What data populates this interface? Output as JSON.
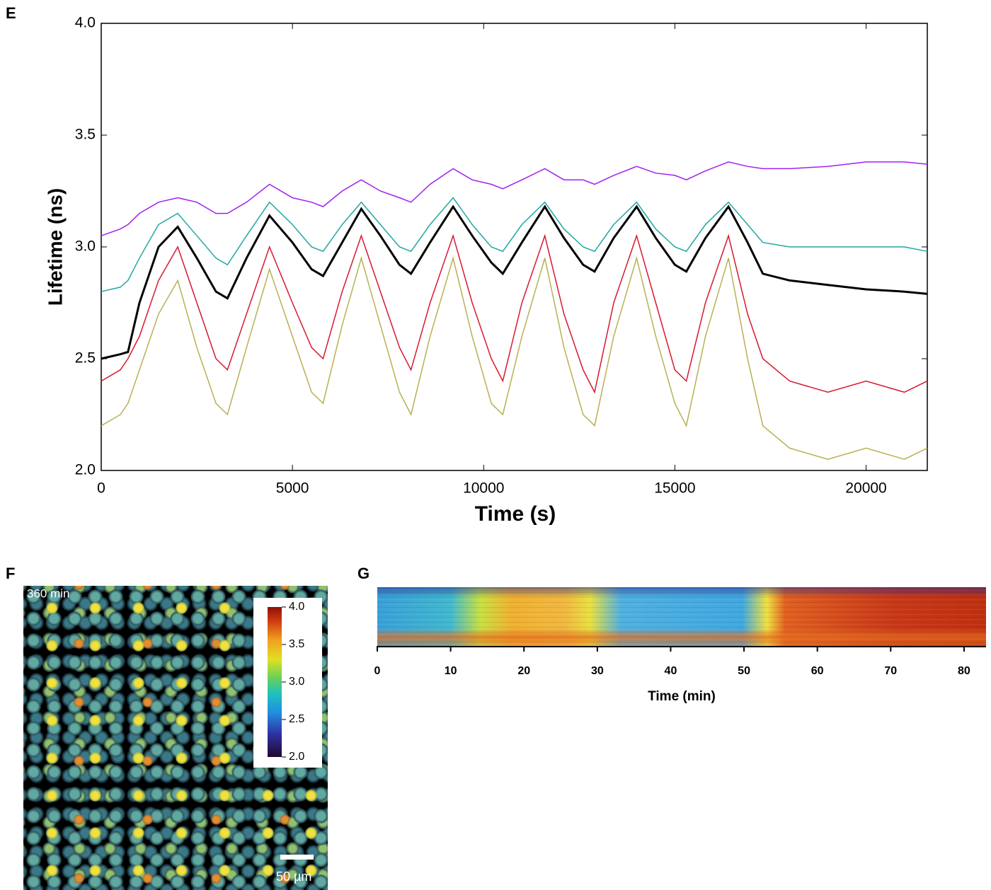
{
  "panel_labels": [
    "E",
    "F",
    "G"
  ],
  "chart_data": [
    {
      "type": "line",
      "xlabel": "Time (s)",
      "ylabel": "Lifetime (ns)",
      "xlim": [
        0,
        21600
      ],
      "ylim": [
        2.0,
        4.0
      ],
      "xticks": [
        0,
        5000,
        10000,
        15000,
        20000
      ],
      "yticks": [
        {
          "value": 2.0,
          "label": "2.0"
        },
        {
          "value": 2.5,
          "label": "2.5"
        },
        {
          "value": 3.0,
          "label": "3.0"
        },
        {
          "value": 3.5,
          "label": "3.5"
        },
        {
          "value": 4.0,
          "label": "4.0"
        }
      ],
      "x": [
        0,
        500,
        700,
        1000,
        1500,
        2000,
        2500,
        3000,
        3300,
        3800,
        4400,
        5000,
        5500,
        5800,
        6300,
        6800,
        7300,
        7800,
        8100,
        8600,
        9200,
        9700,
        10200,
        10500,
        11000,
        11600,
        12100,
        12600,
        12900,
        13400,
        14000,
        14500,
        15000,
        15300,
        15800,
        16400,
        16900,
        17300,
        18000,
        19000,
        20000,
        21000,
        21600
      ],
      "series": [
        {
          "color": "#a020f0",
          "values": [
            3.05,
            3.08,
            3.1,
            3.15,
            3.2,
            3.22,
            3.2,
            3.15,
            3.15,
            3.2,
            3.28,
            3.22,
            3.2,
            3.18,
            3.25,
            3.3,
            3.25,
            3.22,
            3.2,
            3.28,
            3.35,
            3.3,
            3.28,
            3.26,
            3.3,
            3.35,
            3.3,
            3.3,
            3.28,
            3.32,
            3.36,
            3.33,
            3.32,
            3.3,
            3.34,
            3.38,
            3.36,
            3.35,
            3.35,
            3.36,
            3.38,
            3.38,
            3.37
          ]
        },
        {
          "color": "#20a8a0",
          "values": [
            2.8,
            2.82,
            2.85,
            2.95,
            3.1,
            3.15,
            3.05,
            2.95,
            2.92,
            3.05,
            3.2,
            3.1,
            3.0,
            2.98,
            3.1,
            3.2,
            3.1,
            3.0,
            2.98,
            3.1,
            3.22,
            3.1,
            3.0,
            2.98,
            3.1,
            3.2,
            3.08,
            3.0,
            2.98,
            3.1,
            3.2,
            3.08,
            3.0,
            2.98,
            3.1,
            3.2,
            3.1,
            3.02,
            3.0,
            3.0,
            3.0,
            3.0,
            2.98
          ]
        },
        {
          "color": "#d81830",
          "values": [
            2.4,
            2.45,
            2.5,
            2.6,
            2.85,
            3.0,
            2.75,
            2.5,
            2.45,
            2.7,
            3.0,
            2.75,
            2.55,
            2.5,
            2.8,
            3.05,
            2.8,
            2.55,
            2.45,
            2.75,
            3.05,
            2.75,
            2.5,
            2.4,
            2.75,
            3.05,
            2.7,
            2.45,
            2.35,
            2.75,
            3.05,
            2.75,
            2.45,
            2.4,
            2.75,
            3.05,
            2.7,
            2.5,
            2.4,
            2.35,
            2.4,
            2.35,
            2.4
          ]
        },
        {
          "color": "#b8b050",
          "values": [
            2.2,
            2.25,
            2.3,
            2.45,
            2.7,
            2.85,
            2.55,
            2.3,
            2.25,
            2.55,
            2.9,
            2.6,
            2.35,
            2.3,
            2.65,
            2.95,
            2.65,
            2.35,
            2.25,
            2.6,
            2.95,
            2.6,
            2.3,
            2.25,
            2.6,
            2.95,
            2.55,
            2.25,
            2.2,
            2.6,
            2.95,
            2.6,
            2.3,
            2.2,
            2.6,
            2.95,
            2.5,
            2.2,
            2.1,
            2.05,
            2.1,
            2.05,
            2.1
          ]
        },
        {
          "color": "#000000",
          "values": [
            2.5,
            2.52,
            2.53,
            2.75,
            3.0,
            3.09,
            2.95,
            2.8,
            2.77,
            2.95,
            3.14,
            3.02,
            2.9,
            2.87,
            3.02,
            3.17,
            3.05,
            2.92,
            2.88,
            3.02,
            3.18,
            3.05,
            2.93,
            2.88,
            3.02,
            3.18,
            3.04,
            2.92,
            2.89,
            3.04,
            3.18,
            3.04,
            2.92,
            2.89,
            3.04,
            3.18,
            3.02,
            2.88,
            2.85,
            2.83,
            2.81,
            2.8,
            2.79
          ]
        }
      ]
    },
    {
      "type": "heatmap",
      "xlabel": "Time (min)",
      "xlim": [
        0,
        83
      ],
      "xticks": [
        0,
        10,
        20,
        30,
        40,
        50,
        60,
        70,
        80
      ]
    }
  ],
  "image": {
    "timestamp": "360 min",
    "scale_bar": "50 µm",
    "colorbar": {
      "lim": [
        2.0,
        4.0
      ],
      "ticks": [
        {
          "value": 4.0,
          "label": "4.0"
        },
        {
          "value": 3.5,
          "label": "3.5"
        },
        {
          "value": 3.0,
          "label": "3.0"
        },
        {
          "value": 2.5,
          "label": "2.5"
        },
        {
          "value": 2.0,
          "label": "2.0"
        }
      ]
    }
  }
}
